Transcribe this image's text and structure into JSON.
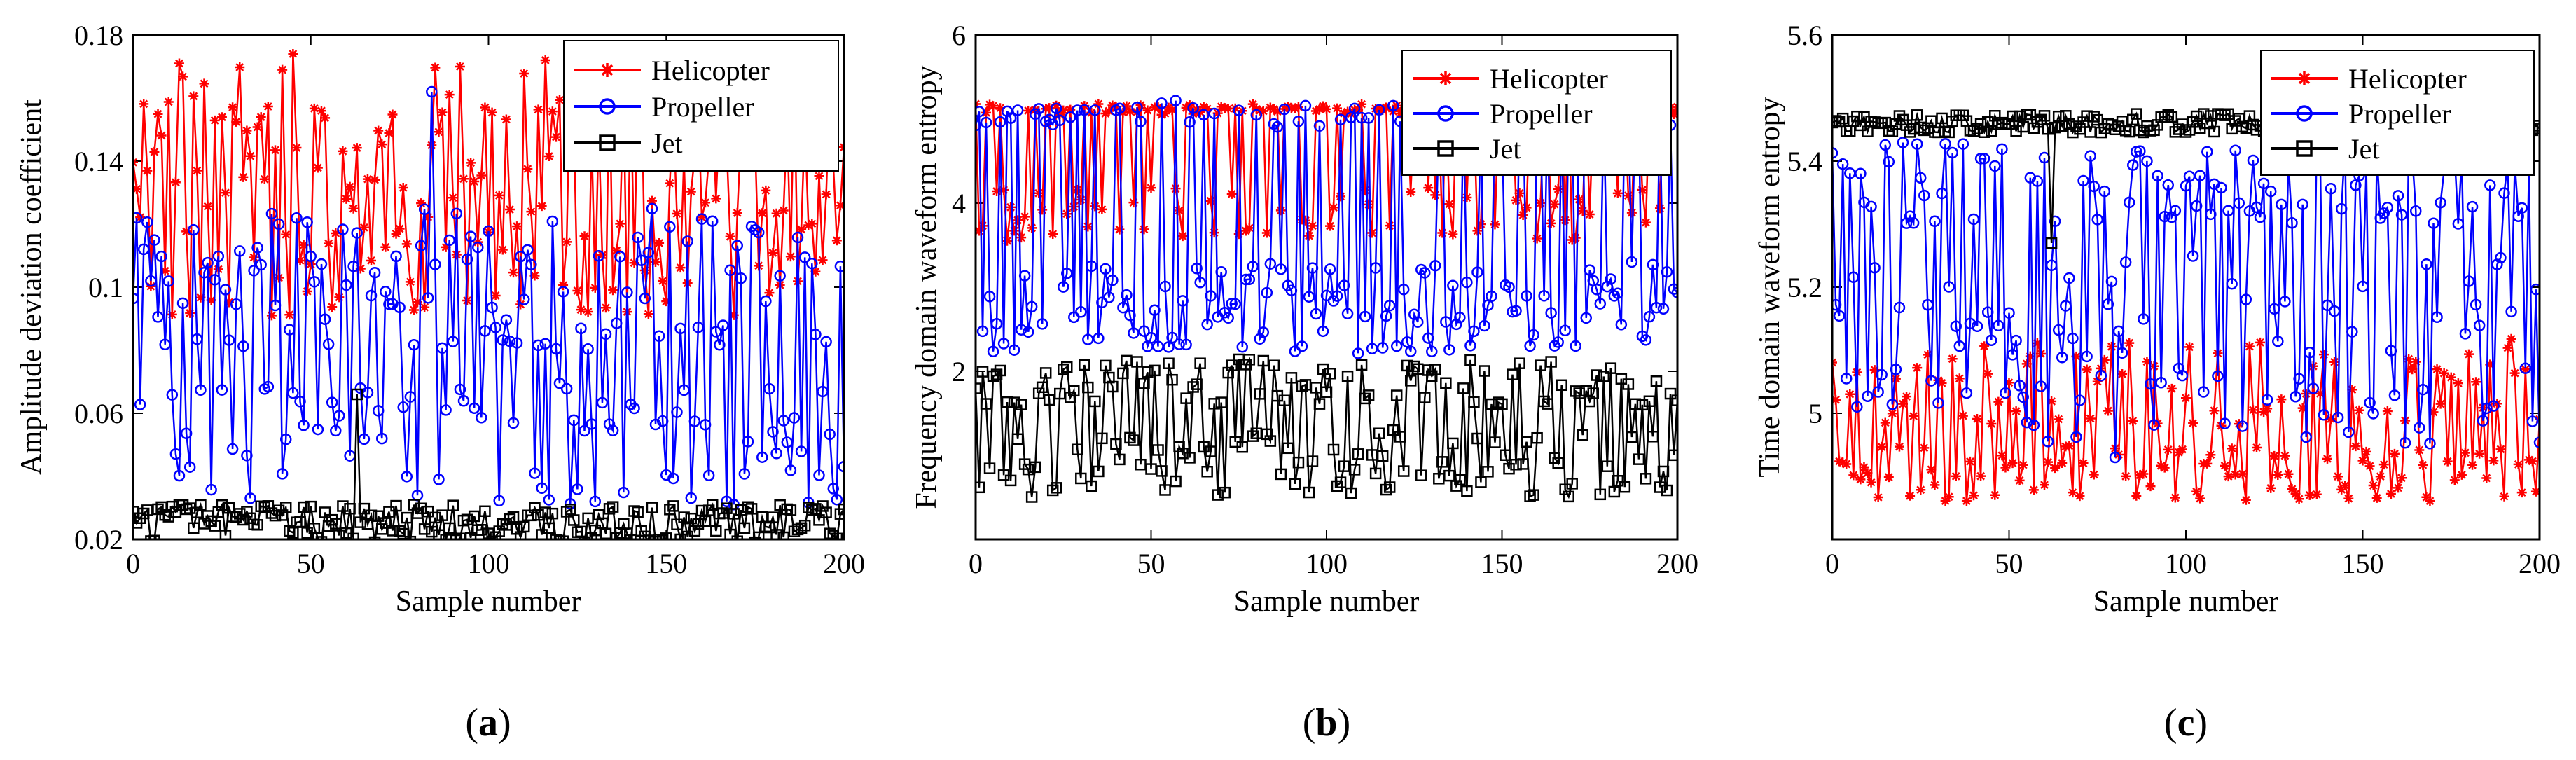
{
  "figure": {
    "panels": [
      {
        "label_open": "(",
        "label_letter": "a",
        "label_close": ")"
      },
      {
        "label_open": "(",
        "label_letter": "b",
        "label_close": ")"
      },
      {
        "label_open": "(",
        "label_letter": "c",
        "label_close": ")"
      }
    ]
  },
  "chart_data": [
    {
      "type": "line",
      "title": "",
      "xlabel": "Sample number",
      "ylabel": "Amplitude deviation coefficient",
      "xlim": [
        0,
        200
      ],
      "ylim": [
        0.02,
        0.18
      ],
      "xticks": [
        0,
        50,
        100,
        150,
        200
      ],
      "yticks": [
        0.02,
        0.06,
        0.1,
        0.14,
        0.18
      ],
      "ytick_labels": [
        "0.02",
        "0.06",
        "0.1",
        "0.14",
        "0.18"
      ],
      "legend_position": "top-right",
      "n_points": 201,
      "series": [
        {
          "name": "Helicopter",
          "color": "#ff0000",
          "marker": "asterisk",
          "low_range": [
            0.09,
            0.128
          ],
          "high_range": [
            0.128,
            0.17
          ],
          "high_prob": 0.55,
          "spikes": [
            [
              45,
              0.174
            ],
            [
              13,
              0.171
            ],
            [
              92,
              0.17
            ],
            [
              116,
              0.172
            ]
          ],
          "seed": 11
        },
        {
          "name": "Propeller",
          "color": "#0000ff",
          "marker": "circle",
          "low_range": [
            0.03,
            0.07
          ],
          "high_range": [
            0.08,
            0.125
          ],
          "high_prob": 0.5,
          "spikes": [
            [
              84,
              0.162
            ],
            [
              1,
              0.122
            ]
          ],
          "seed": 23
        },
        {
          "name": "Jet",
          "color": "#000000",
          "marker": "square",
          "low_range": [
            0.019,
            0.025
          ],
          "high_range": [
            0.025,
            0.031
          ],
          "high_prob": 0.5,
          "spikes": [
            [
              63,
              0.066
            ]
          ],
          "seed": 37
        }
      ]
    },
    {
      "type": "line",
      "title": "",
      "xlabel": "Sample number",
      "ylabel": "Frequency domain waveform entropy",
      "xlim": [
        0,
        200
      ],
      "ylim": [
        0,
        6
      ],
      "xticks": [
        0,
        50,
        100,
        150,
        200
      ],
      "yticks": [
        2,
        4,
        6
      ],
      "ytick_labels": [
        "2",
        "4",
        "6"
      ],
      "legend_position": "top-right",
      "n_points": 201,
      "series": [
        {
          "name": "Helicopter",
          "color": "#ff0000",
          "marker": "asterisk",
          "low_range": [
            3.55,
            4.2
          ],
          "high_range": [
            5.05,
            5.18
          ],
          "high_prob": 0.55,
          "spikes": [],
          "seed": 41
        },
        {
          "name": "Propeller",
          "color": "#0000ff",
          "marker": "circle",
          "low_range": [
            2.2,
            3.3
          ],
          "high_range": [
            4.9,
            5.2
          ],
          "high_prob": 0.3,
          "spikes": [
            [
              57,
              5.22
            ]
          ],
          "seed": 53
        },
        {
          "name": "Jet",
          "color": "#000000",
          "marker": "square",
          "low_range": [
            0.5,
            1.3
          ],
          "high_range": [
            1.6,
            2.15
          ],
          "high_prob": 0.5,
          "spikes": [],
          "seed": 67
        }
      ]
    },
    {
      "type": "line",
      "title": "",
      "xlabel": "Sample number",
      "ylabel": "Time domain waveform entropy",
      "xlim": [
        0,
        200
      ],
      "ylim": [
        4.8,
        5.6
      ],
      "xticks": [
        0,
        50,
        100,
        150,
        200
      ],
      "yticks": [
        5.0,
        5.2,
        5.4,
        5.6
      ],
      "ytick_labels": [
        "5",
        "5.2",
        "5.4",
        "5.6"
      ],
      "legend_position": "top-right",
      "n_points": 201,
      "series": [
        {
          "name": "Helicopter",
          "color": "#ff0000",
          "marker": "asterisk",
          "low_range": [
            4.86,
            4.95
          ],
          "high_range": [
            4.98,
            5.12
          ],
          "high_prob": 0.45,
          "spikes": [],
          "seed": 71
        },
        {
          "name": "Propeller",
          "color": "#0000ff",
          "marker": "circle",
          "low_range": [
            4.95,
            5.25
          ],
          "high_range": [
            5.3,
            5.44
          ],
          "high_prob": 0.5,
          "spikes": [
            [
              80,
              4.93
            ]
          ],
          "seed": 83
        },
        {
          "name": "Jet",
          "color": "#000000",
          "marker": "square",
          "low_range": [
            5.445,
            5.46
          ],
          "high_range": [
            5.46,
            5.475
          ],
          "high_prob": 0.5,
          "spikes": [
            [
              62,
              5.27
            ]
          ],
          "seed": 97
        }
      ]
    }
  ]
}
